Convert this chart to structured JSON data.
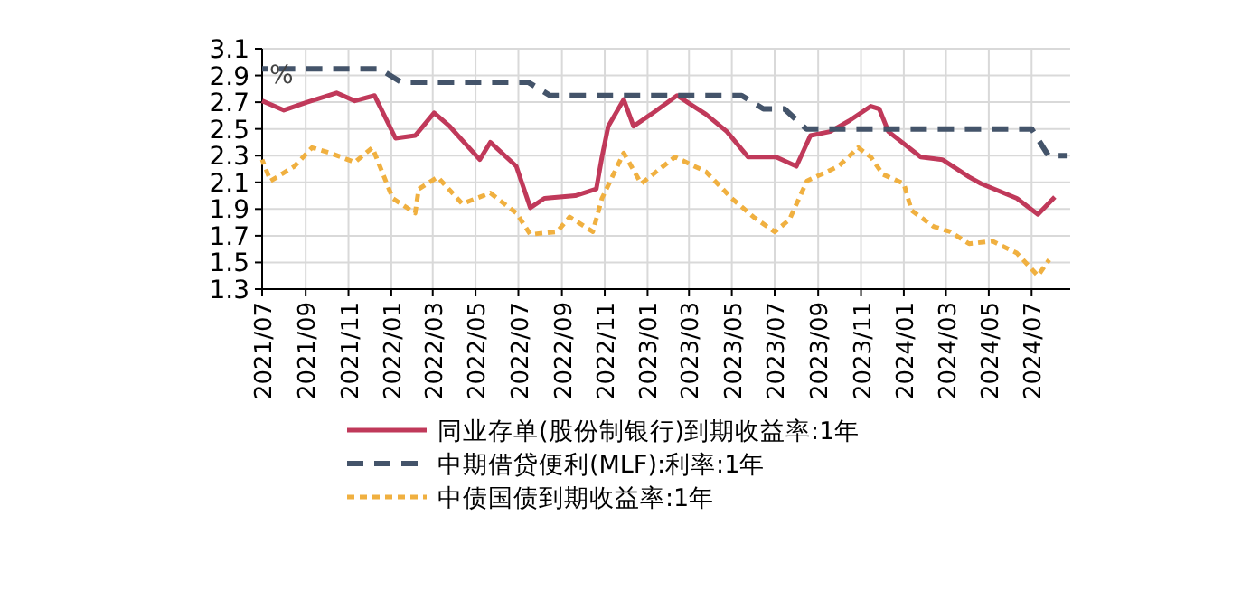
{
  "chart_data": {
    "type": "line",
    "ylabel": "%",
    "ylim": [
      1.3,
      3.1
    ],
    "yticks": [
      1.3,
      1.5,
      1.7,
      1.9,
      2.1,
      2.3,
      2.5,
      2.7,
      2.9,
      3.1
    ],
    "xlim": [
      "2021-07-01",
      "2024-08-25"
    ],
    "xticks": [
      {
        "value": "2021-07-01",
        "label": "2021/07"
      },
      {
        "value": "2021-09-01",
        "label": "2021/09"
      },
      {
        "value": "2021-11-01",
        "label": "2021/11"
      },
      {
        "value": "2022-01-01",
        "label": "2022/01"
      },
      {
        "value": "2022-03-01",
        "label": "2022/03"
      },
      {
        "value": "2022-05-01",
        "label": "2022/05"
      },
      {
        "value": "2022-07-01",
        "label": "2022/07"
      },
      {
        "value": "2022-09-01",
        "label": "2022/09"
      },
      {
        "value": "2022-11-01",
        "label": "2022/11"
      },
      {
        "value": "2023-01-01",
        "label": "2023/01"
      },
      {
        "value": "2023-03-01",
        "label": "2023/03"
      },
      {
        "value": "2023-05-01",
        "label": "2023/05"
      },
      {
        "value": "2023-07-01",
        "label": "2023/07"
      },
      {
        "value": "2023-09-01",
        "label": "2023/09"
      },
      {
        "value": "2023-11-01",
        "label": "2023/11"
      },
      {
        "value": "2024-01-01",
        "label": "2024/01"
      },
      {
        "value": "2024-03-01",
        "label": "2024/03"
      },
      {
        "value": "2024-05-01",
        "label": "2024/05"
      },
      {
        "value": "2024-07-01",
        "label": "2024/07"
      }
    ],
    "grid": true,
    "legend": "bottom",
    "series": [
      {
        "name": "同业存单(股份制银行)到期收益率:1年",
        "color": "#c0395a",
        "line_style": "solid",
        "x": [
          "2021-07-01",
          "2021-08-01",
          "2021-09-03",
          "2021-10-15",
          "2021-11-10",
          "2021-12-08",
          "2022-01-07",
          "2022-02-04",
          "2022-03-03",
          "2022-03-25",
          "2022-05-07",
          "2022-05-22",
          "2022-06-28",
          "2022-07-18",
          "2022-08-07",
          "2022-09-20",
          "2022-10-20",
          "2022-10-28",
          "2022-11-06",
          "2022-11-28",
          "2022-12-12",
          "2023-01-06",
          "2023-02-12",
          "2023-03-25",
          "2023-04-24",
          "2023-05-24",
          "2023-07-03",
          "2023-08-01",
          "2023-08-21",
          "2023-09-18",
          "2023-10-15",
          "2023-11-15",
          "2023-11-27",
          "2023-12-10",
          "2024-01-25",
          "2024-02-25",
          "2024-04-03",
          "2024-04-20",
          "2024-06-10",
          "2024-07-10",
          "2024-08-03"
        ],
        "values": [
          2.71,
          2.64,
          2.7,
          2.77,
          2.71,
          2.75,
          2.43,
          2.45,
          2.62,
          2.52,
          2.27,
          2.4,
          2.22,
          1.91,
          1.98,
          2.0,
          2.05,
          2.29,
          2.52,
          2.72,
          2.52,
          2.61,
          2.75,
          2.61,
          2.48,
          2.29,
          2.29,
          2.22,
          2.45,
          2.48,
          2.56,
          2.67,
          2.65,
          2.48,
          2.29,
          2.27,
          2.14,
          2.09,
          1.98,
          1.86,
          1.99
        ]
      },
      {
        "name": "中期借贷便利(MLF):利率:1年",
        "color": "#44546a",
        "line_style": "dashed",
        "x": [
          "2021-07-01",
          "2021-12-15",
          "2022-01-15",
          "2022-07-15",
          "2022-08-15",
          "2023-05-15",
          "2023-06-15",
          "2023-07-15",
          "2023-08-15",
          "2024-07-01",
          "2024-07-25",
          "2024-08-20"
        ],
        "values": [
          2.95,
          2.95,
          2.85,
          2.85,
          2.75,
          2.75,
          2.65,
          2.65,
          2.5,
          2.5,
          2.3,
          2.3
        ]
      },
      {
        "name": "中债国债到期收益率:1年",
        "color": "#f0b040",
        "line_style": "dotted",
        "x": [
          "2021-07-01",
          "2021-07-13",
          "2021-08-16",
          "2021-09-10",
          "2021-10-06",
          "2021-11-10",
          "2021-12-05",
          "2022-01-03",
          "2022-02-04",
          "2022-02-09",
          "2022-03-08",
          "2022-04-12",
          "2022-05-22",
          "2022-06-28",
          "2022-07-18",
          "2022-08-25",
          "2022-09-12",
          "2022-10-15",
          "2022-10-28",
          "2022-11-28",
          "2022-12-23",
          "2023-02-09",
          "2023-03-25",
          "2023-05-01",
          "2023-06-01",
          "2023-07-01",
          "2023-07-22",
          "2023-08-16",
          "2023-09-30",
          "2023-10-28",
          "2023-11-15",
          "2023-12-02",
          "2024-01-01",
          "2024-01-12",
          "2024-02-12",
          "2024-03-07",
          "2024-04-03",
          "2024-05-06",
          "2024-06-10",
          "2024-07-10",
          "2024-07-26"
        ],
        "values": [
          2.27,
          2.11,
          2.22,
          2.36,
          2.32,
          2.25,
          2.36,
          1.98,
          1.87,
          2.05,
          2.14,
          1.94,
          2.02,
          1.87,
          1.71,
          1.73,
          1.84,
          1.73,
          1.98,
          2.32,
          2.09,
          2.29,
          2.18,
          1.98,
          1.84,
          1.73,
          1.82,
          2.11,
          2.22,
          2.36,
          2.29,
          2.16,
          2.09,
          1.89,
          1.77,
          1.73,
          1.64,
          1.66,
          1.57,
          1.4,
          1.52
        ]
      }
    ]
  }
}
